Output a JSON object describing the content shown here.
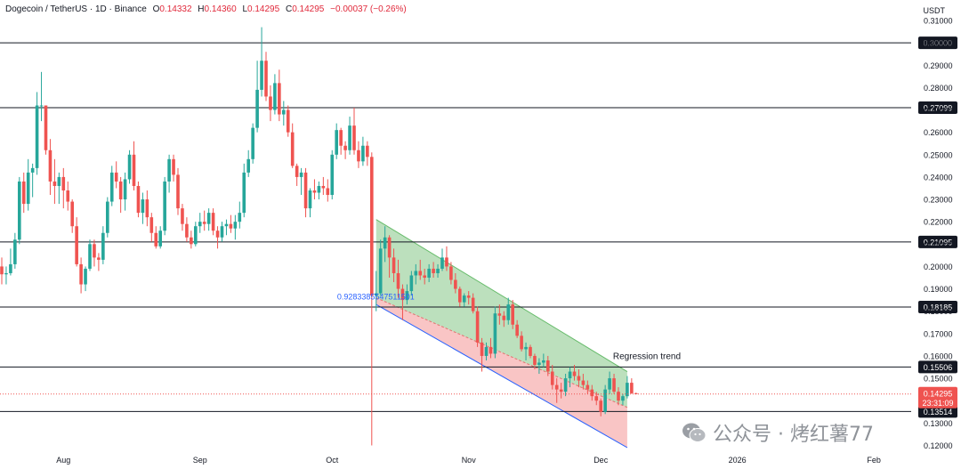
{
  "header": {
    "symbol": "Dogecoin / TetherUS · 1D · Binance",
    "o_label": "O",
    "o_value": "0.14332",
    "h_label": "H",
    "h_value": "0.14360",
    "l_label": "L",
    "l_value": "0.14295",
    "c_label": "C",
    "c_value": "0.14295",
    "change": "−0.00037 (−0.26%)"
  },
  "price_unit": "USDT",
  "watermark": "公众号 · 烤红薯77",
  "colors": {
    "up": "#26a69a",
    "down": "#ef5350",
    "grid_line": "#131722",
    "channel_upper_fill": "#a5d6a7",
    "channel_lower_fill": "#f7b2b2",
    "channel_label": "#2962ff",
    "axis_text": "#131722"
  },
  "chart_data": {
    "type": "candlestick",
    "title": "Dogecoin / TetherUS · 1D · Binance",
    "x_ticks": [
      "Aug",
      "Sep",
      "Oct",
      "Nov",
      "Dec",
      "2026",
      "Feb"
    ],
    "y_ticks": [
      "0.31000",
      "0.30000",
      "0.29000",
      "0.28000",
      "0.27000",
      "0.26000",
      "0.25000",
      "0.24000",
      "0.23000",
      "0.22000",
      "0.21000",
      "0.20000",
      "0.19000",
      "0.18000",
      "0.17000",
      "0.16000",
      "0.15000",
      "0.14000",
      "0.13000",
      "0.12000"
    ],
    "ylim": [
      0.117,
      0.312
    ],
    "horizontal_levels": [
      {
        "value": 0.3,
        "label": "0.30000"
      },
      {
        "value": 0.27099,
        "label": "0.27099"
      },
      {
        "value": 0.21095,
        "label": "0.21095"
      },
      {
        "value": 0.18185,
        "label": "0.18185"
      },
      {
        "value": 0.15506,
        "label": "0.15506"
      },
      {
        "value": 0.13514,
        "label": "0.13514"
      }
    ],
    "last_price": {
      "value": 0.14295,
      "label": "0.14295",
      "countdown": "23:31:09"
    },
    "regression_trend": {
      "label": "Regression trend",
      "pearson_label": "0.9283385547511501",
      "start_date": "2025-10-11",
      "end_date": "2025-12-07",
      "upper_start": 0.221,
      "upper_end": 0.153,
      "mid_start": 0.186,
      "mid_end": 0.137,
      "lower_start": 0.183,
      "lower_end": 0.119
    },
    "ohlc": [
      [
        "2025-07-18",
        0.2,
        0.204,
        0.192,
        0.1965
      ],
      [
        "2025-07-19",
        0.1965,
        0.2,
        0.192,
        0.197
      ],
      [
        "2025-07-20",
        0.197,
        0.208,
        0.196,
        0.201
      ],
      [
        "2025-07-21",
        0.201,
        0.215,
        0.199,
        0.212
      ],
      [
        "2025-07-22",
        0.212,
        0.24,
        0.21,
        0.238
      ],
      [
        "2025-07-23",
        0.238,
        0.242,
        0.224,
        0.228
      ],
      [
        "2025-07-24",
        0.228,
        0.248,
        0.225,
        0.242
      ],
      [
        "2025-07-25",
        0.242,
        0.246,
        0.231,
        0.244
      ],
      [
        "2025-07-26",
        0.244,
        0.278,
        0.241,
        0.272
      ],
      [
        "2025-07-27",
        0.272,
        0.287,
        0.265,
        0.272
      ],
      [
        "2025-07-28",
        0.272,
        0.272,
        0.25,
        0.252
      ],
      [
        "2025-07-29",
        0.252,
        0.257,
        0.232,
        0.238
      ],
      [
        "2025-07-30",
        0.238,
        0.248,
        0.228,
        0.236
      ],
      [
        "2025-07-31",
        0.236,
        0.242,
        0.228,
        0.24
      ],
      [
        "2025-08-01",
        0.24,
        0.244,
        0.226,
        0.234
      ],
      [
        "2025-08-02",
        0.234,
        0.238,
        0.225,
        0.229
      ],
      [
        "2025-08-03",
        0.229,
        0.23,
        0.215,
        0.218
      ],
      [
        "2025-08-04",
        0.218,
        0.222,
        0.2,
        0.201
      ],
      [
        "2025-08-05",
        0.201,
        0.204,
        0.188,
        0.192
      ],
      [
        "2025-08-06",
        0.192,
        0.2,
        0.189,
        0.199
      ],
      [
        "2025-08-07",
        0.199,
        0.212,
        0.198,
        0.21
      ],
      [
        "2025-08-08",
        0.21,
        0.212,
        0.2,
        0.204
      ],
      [
        "2025-08-09",
        0.204,
        0.206,
        0.198,
        0.203
      ],
      [
        "2025-08-10",
        0.203,
        0.218,
        0.201,
        0.215
      ],
      [
        "2025-08-11",
        0.215,
        0.231,
        0.213,
        0.229
      ],
      [
        "2025-08-12",
        0.229,
        0.245,
        0.227,
        0.242
      ],
      [
        "2025-08-13",
        0.242,
        0.247,
        0.235,
        0.238
      ],
      [
        "2025-08-14",
        0.238,
        0.24,
        0.224,
        0.23
      ],
      [
        "2025-08-15",
        0.23,
        0.242,
        0.225,
        0.239
      ],
      [
        "2025-08-16",
        0.239,
        0.252,
        0.237,
        0.25
      ],
      [
        "2025-08-17",
        0.25,
        0.256,
        0.234,
        0.236
      ],
      [
        "2025-08-18",
        0.236,
        0.238,
        0.222,
        0.224
      ],
      [
        "2025-08-19",
        0.224,
        0.233,
        0.219,
        0.23
      ],
      [
        "2025-08-20",
        0.23,
        0.234,
        0.218,
        0.222
      ],
      [
        "2025-08-21",
        0.222,
        0.224,
        0.211,
        0.215
      ],
      [
        "2025-08-22",
        0.215,
        0.218,
        0.208,
        0.209
      ],
      [
        "2025-08-23",
        0.209,
        0.218,
        0.208,
        0.216
      ],
      [
        "2025-08-24",
        0.216,
        0.24,
        0.214,
        0.238
      ],
      [
        "2025-08-25",
        0.238,
        0.25,
        0.233,
        0.248
      ],
      [
        "2025-08-26",
        0.248,
        0.25,
        0.238,
        0.241
      ],
      [
        "2025-08-27",
        0.241,
        0.244,
        0.223,
        0.226
      ],
      [
        "2025-08-28",
        0.226,
        0.228,
        0.216,
        0.219
      ],
      [
        "2025-08-29",
        0.219,
        0.222,
        0.211,
        0.213
      ],
      [
        "2025-08-30",
        0.213,
        0.216,
        0.208,
        0.21
      ],
      [
        "2025-08-31",
        0.21,
        0.22,
        0.209,
        0.218
      ],
      [
        "2025-09-01",
        0.218,
        0.224,
        0.215,
        0.22
      ],
      [
        "2025-09-02",
        0.22,
        0.225,
        0.216,
        0.219
      ],
      [
        "2025-09-03",
        0.219,
        0.226,
        0.216,
        0.224
      ],
      [
        "2025-09-04",
        0.224,
        0.226,
        0.214,
        0.216
      ],
      [
        "2025-09-05",
        0.216,
        0.218,
        0.208,
        0.213
      ],
      [
        "2025-09-06",
        0.213,
        0.22,
        0.211,
        0.218
      ],
      [
        "2025-09-07",
        0.218,
        0.221,
        0.214,
        0.219
      ],
      [
        "2025-09-08",
        0.219,
        0.223,
        0.215,
        0.217
      ],
      [
        "2025-09-09",
        0.217,
        0.223,
        0.212,
        0.22
      ],
      [
        "2025-09-10",
        0.22,
        0.229,
        0.217,
        0.224
      ],
      [
        "2025-09-11",
        0.224,
        0.246,
        0.222,
        0.242
      ],
      [
        "2025-09-12",
        0.242,
        0.252,
        0.24,
        0.248
      ],
      [
        "2025-09-13",
        0.248,
        0.264,
        0.246,
        0.262
      ],
      [
        "2025-09-14",
        0.262,
        0.292,
        0.26,
        0.279
      ],
      [
        "2025-09-15",
        0.279,
        0.307,
        0.276,
        0.292
      ],
      [
        "2025-09-16",
        0.292,
        0.296,
        0.274,
        0.276
      ],
      [
        "2025-09-17",
        0.276,
        0.281,
        0.265,
        0.27
      ],
      [
        "2025-09-18",
        0.27,
        0.286,
        0.268,
        0.282
      ],
      [
        "2025-09-19",
        0.282,
        0.288,
        0.265,
        0.268
      ],
      [
        "2025-09-20",
        0.268,
        0.274,
        0.263,
        0.27
      ],
      [
        "2025-09-21",
        0.27,
        0.272,
        0.258,
        0.26
      ],
      [
        "2025-09-22",
        0.26,
        0.264,
        0.244,
        0.245
      ],
      [
        "2025-09-23",
        0.245,
        0.246,
        0.236,
        0.24
      ],
      [
        "2025-09-24",
        0.24,
        0.244,
        0.232,
        0.242
      ],
      [
        "2025-09-25",
        0.242,
        0.244,
        0.222,
        0.226
      ],
      [
        "2025-09-26",
        0.226,
        0.235,
        0.222,
        0.234
      ],
      [
        "2025-09-27",
        0.234,
        0.239,
        0.23,
        0.233
      ],
      [
        "2025-09-28",
        0.233,
        0.238,
        0.23,
        0.236
      ],
      [
        "2025-09-29",
        0.236,
        0.24,
        0.232,
        0.235
      ],
      [
        "2025-09-30",
        0.235,
        0.239,
        0.229,
        0.232
      ],
      [
        "2025-10-01",
        0.232,
        0.252,
        0.23,
        0.25
      ],
      [
        "2025-10-02",
        0.25,
        0.264,
        0.248,
        0.261
      ],
      [
        "2025-10-03",
        0.261,
        0.262,
        0.25,
        0.254
      ],
      [
        "2025-10-04",
        0.254,
        0.256,
        0.248,
        0.252
      ],
      [
        "2025-10-05",
        0.252,
        0.267,
        0.25,
        0.263
      ],
      [
        "2025-10-06",
        0.263,
        0.271,
        0.25,
        0.252
      ],
      [
        "2025-10-07",
        0.252,
        0.256,
        0.244,
        0.247
      ],
      [
        "2025-10-08",
        0.247,
        0.258,
        0.245,
        0.254
      ],
      [
        "2025-10-09",
        0.254,
        0.256,
        0.245,
        0.249
      ],
      [
        "2025-10-10",
        0.249,
        0.251,
        0.12,
        0.187
      ],
      [
        "2025-10-11",
        0.187,
        0.198,
        0.18,
        0.188
      ],
      [
        "2025-10-12",
        0.188,
        0.212,
        0.187,
        0.208
      ],
      [
        "2025-10-13",
        0.208,
        0.218,
        0.202,
        0.213
      ],
      [
        "2025-10-14",
        0.213,
        0.214,
        0.195,
        0.204
      ],
      [
        "2025-10-15",
        0.204,
        0.208,
        0.193,
        0.197
      ],
      [
        "2025-10-16",
        0.197,
        0.203,
        0.186,
        0.19
      ],
      [
        "2025-10-17",
        0.19,
        0.192,
        0.176,
        0.185
      ],
      [
        "2025-10-18",
        0.185,
        0.192,
        0.183,
        0.189
      ],
      [
        "2025-10-19",
        0.189,
        0.198,
        0.187,
        0.196
      ],
      [
        "2025-10-20",
        0.196,
        0.201,
        0.192,
        0.198
      ],
      [
        "2025-10-21",
        0.198,
        0.203,
        0.194,
        0.196
      ],
      [
        "2025-10-22",
        0.196,
        0.199,
        0.192,
        0.195
      ],
      [
        "2025-10-23",
        0.195,
        0.201,
        0.193,
        0.199
      ],
      [
        "2025-10-24",
        0.199,
        0.202,
        0.195,
        0.197
      ],
      [
        "2025-10-25",
        0.197,
        0.201,
        0.195,
        0.199
      ],
      [
        "2025-10-26",
        0.199,
        0.208,
        0.198,
        0.204
      ],
      [
        "2025-10-27",
        0.204,
        0.209,
        0.198,
        0.2
      ],
      [
        "2025-10-28",
        0.2,
        0.202,
        0.192,
        0.194
      ],
      [
        "2025-10-29",
        0.194,
        0.197,
        0.188,
        0.19
      ],
      [
        "2025-10-30",
        0.19,
        0.191,
        0.182,
        0.184
      ],
      [
        "2025-10-31",
        0.184,
        0.188,
        0.182,
        0.187
      ],
      [
        "2025-11-01",
        0.187,
        0.189,
        0.183,
        0.186
      ],
      [
        "2025-11-02",
        0.186,
        0.188,
        0.179,
        0.18
      ],
      [
        "2025-11-03",
        0.18,
        0.182,
        0.164,
        0.166
      ],
      [
        "2025-11-04",
        0.166,
        0.168,
        0.153,
        0.16
      ],
      [
        "2025-11-05",
        0.16,
        0.166,
        0.158,
        0.164
      ],
      [
        "2025-11-06",
        0.164,
        0.168,
        0.159,
        0.161
      ],
      [
        "2025-11-07",
        0.161,
        0.182,
        0.159,
        0.179
      ],
      [
        "2025-11-08",
        0.179,
        0.183,
        0.174,
        0.178
      ],
      [
        "2025-11-09",
        0.178,
        0.18,
        0.173,
        0.176
      ],
      [
        "2025-11-10",
        0.176,
        0.186,
        0.174,
        0.183
      ],
      [
        "2025-11-11",
        0.183,
        0.185,
        0.172,
        0.174
      ],
      [
        "2025-11-12",
        0.174,
        0.176,
        0.168,
        0.169
      ],
      [
        "2025-11-13",
        0.169,
        0.171,
        0.162,
        0.163
      ],
      [
        "2025-11-14",
        0.163,
        0.166,
        0.158,
        0.164
      ],
      [
        "2025-11-15",
        0.164,
        0.165,
        0.159,
        0.16
      ],
      [
        "2025-11-16",
        0.16,
        0.161,
        0.154,
        0.156
      ],
      [
        "2025-11-17",
        0.156,
        0.159,
        0.152,
        0.157
      ],
      [
        "2025-11-18",
        0.157,
        0.161,
        0.155,
        0.158
      ],
      [
        "2025-11-19",
        0.158,
        0.16,
        0.151,
        0.153
      ],
      [
        "2025-11-20",
        0.153,
        0.156,
        0.145,
        0.147
      ],
      [
        "2025-11-21",
        0.147,
        0.15,
        0.139,
        0.145
      ],
      [
        "2025-11-22",
        0.145,
        0.148,
        0.141,
        0.144
      ],
      [
        "2025-11-23",
        0.144,
        0.152,
        0.142,
        0.15
      ],
      [
        "2025-11-24",
        0.15,
        0.155,
        0.146,
        0.153
      ],
      [
        "2025-11-25",
        0.153,
        0.156,
        0.149,
        0.151
      ],
      [
        "2025-11-26",
        0.151,
        0.154,
        0.146,
        0.149
      ],
      [
        "2025-11-27",
        0.149,
        0.152,
        0.145,
        0.147
      ],
      [
        "2025-11-28",
        0.147,
        0.149,
        0.143,
        0.145
      ],
      [
        "2025-11-29",
        0.145,
        0.147,
        0.14,
        0.142
      ],
      [
        "2025-11-30",
        0.142,
        0.144,
        0.138,
        0.14
      ],
      [
        "2025-12-01",
        0.14,
        0.141,
        0.133,
        0.135
      ],
      [
        "2025-12-02",
        0.135,
        0.147,
        0.134,
        0.145
      ],
      [
        "2025-12-03",
        0.145,
        0.153,
        0.143,
        0.15
      ],
      [
        "2025-12-04",
        0.15,
        0.152,
        0.143,
        0.144
      ],
      [
        "2025-12-05",
        0.144,
        0.146,
        0.138,
        0.14
      ],
      [
        "2025-12-06",
        0.14,
        0.143,
        0.138,
        0.142
      ],
      [
        "2025-12-07",
        0.142,
        0.151,
        0.141,
        0.148
      ],
      [
        "2025-12-08",
        0.148,
        0.15,
        0.143,
        0.1433
      ],
      [
        "2025-12-09",
        0.14332,
        0.1436,
        0.14295,
        0.14295
      ]
    ]
  }
}
